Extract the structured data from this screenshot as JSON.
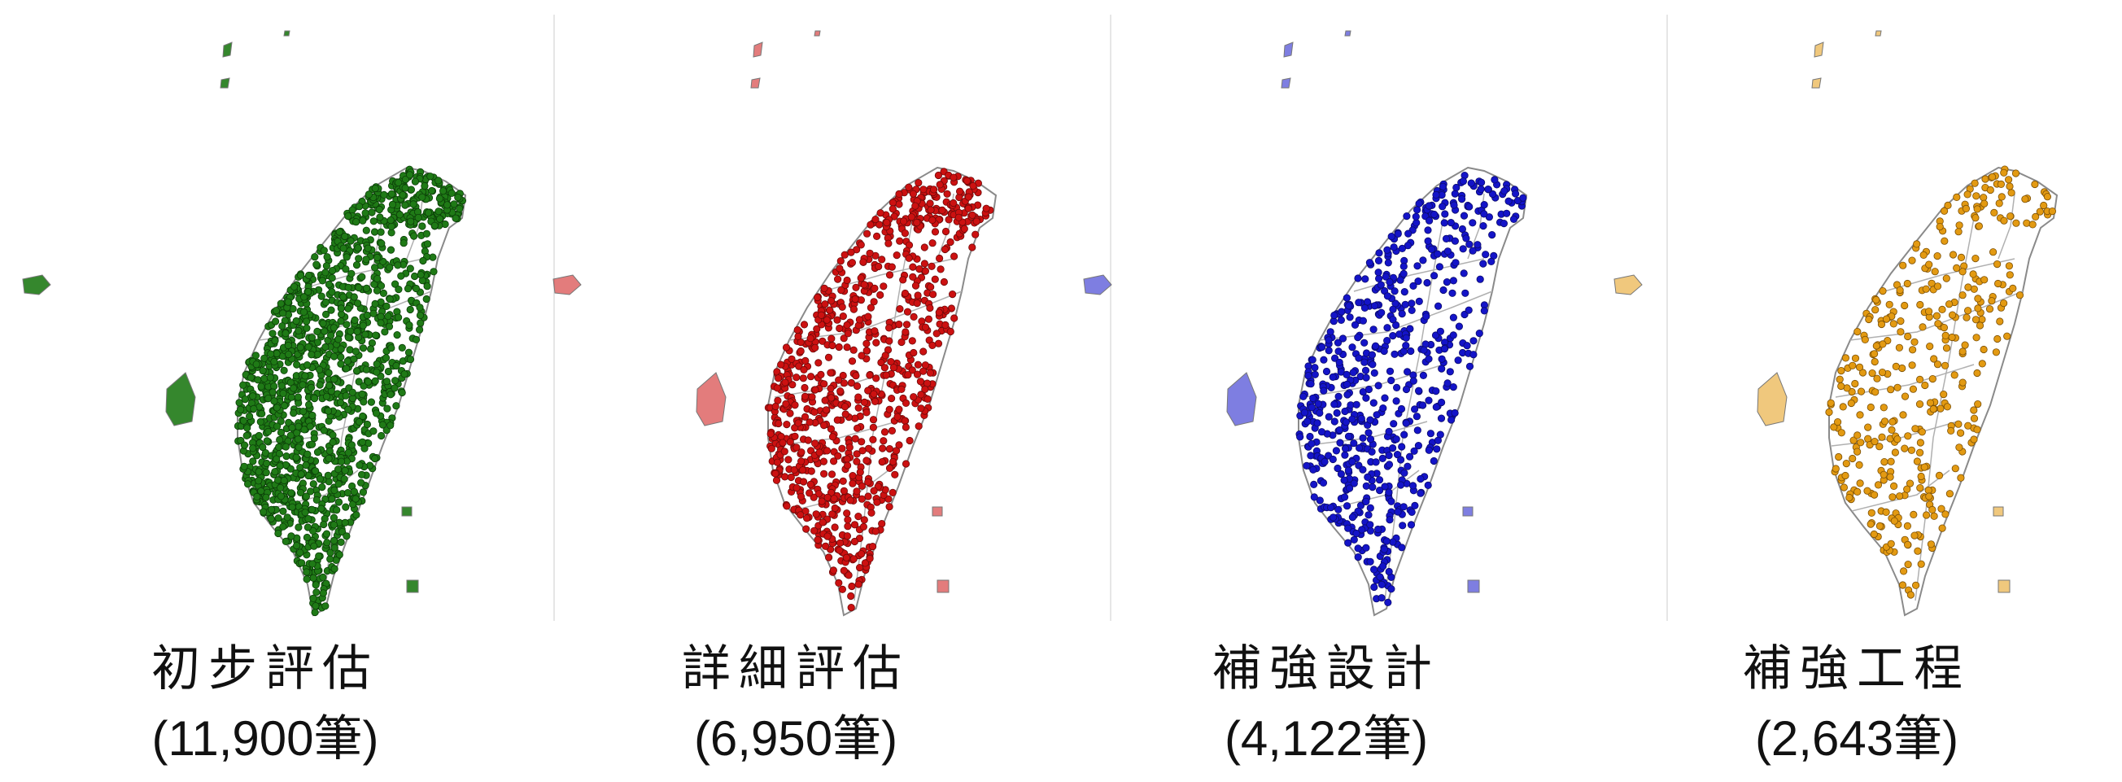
{
  "panels": [
    {
      "title": "初步評估",
      "count": "(11,900筆)",
      "dot_color": "#1f7a16",
      "dot_stroke": "#0b3e08"
    },
    {
      "title": "詳細評估",
      "count": "(6,950筆)",
      "dot_color": "#cc1111",
      "dot_stroke": "#6d0a0a"
    },
    {
      "title": "補強設計",
      "count": "(4,122筆)",
      "dot_color": "#1414c8",
      "dot_stroke": "#0b0b6b"
    },
    {
      "title": "補強工程",
      "count": "(2,643筆)",
      "dot_color": "#e39a12",
      "dot_stroke": "#7a4f06"
    }
  ]
}
